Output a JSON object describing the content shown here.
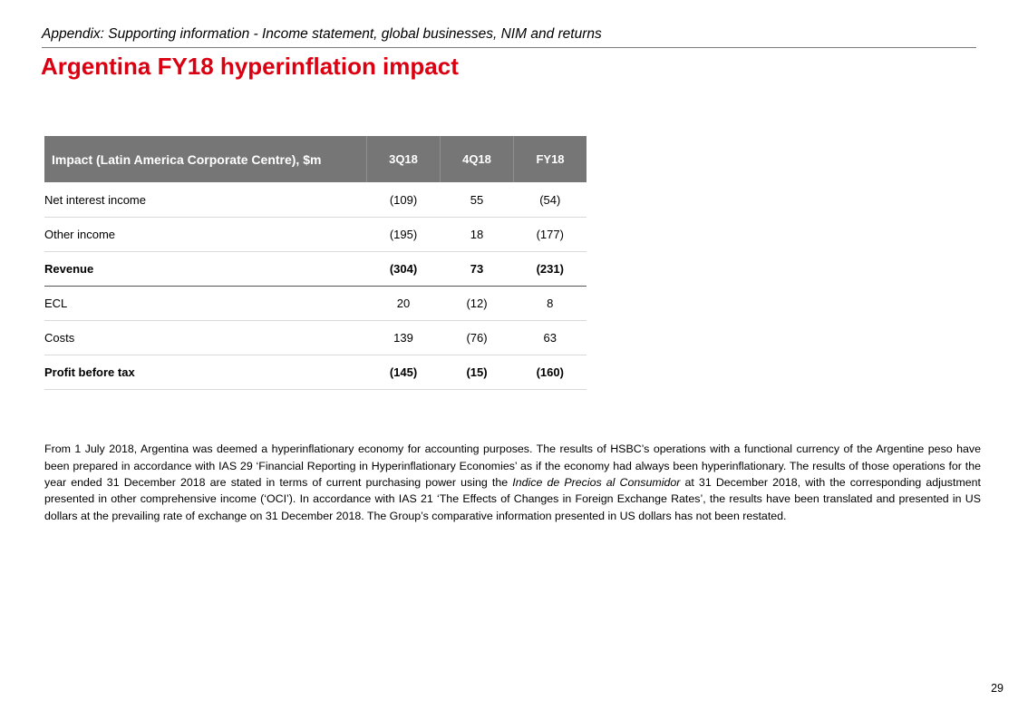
{
  "header": {
    "subtitle": "Appendix: Supporting information - Income statement, global businesses, NIM and returns",
    "title": "Argentina FY18 hyperinflation impact"
  },
  "table": {
    "columns": [
      "Impact (Latin America Corporate Centre), $m",
      "3Q18",
      "4Q18",
      "FY18"
    ],
    "rows": [
      {
        "label": "Net interest income",
        "values": [
          "(109)",
          "55",
          "(54)"
        ],
        "bold": false
      },
      {
        "label": "Other income",
        "values": [
          "(195)",
          "18",
          "(177)"
        ],
        "bold": false
      },
      {
        "label": "Revenue",
        "values": [
          "(304)",
          "73",
          "(231)"
        ],
        "bold": true
      },
      {
        "label": "ECL",
        "values": [
          "20",
          "(12)",
          "8"
        ],
        "bold": false
      },
      {
        "label": "Costs",
        "values": [
          "139",
          "(76)",
          "63"
        ],
        "bold": false
      },
      {
        "label": "Profit before tax",
        "values": [
          "(145)",
          "(15)",
          "(160)"
        ],
        "bold": true
      }
    ]
  },
  "note": {
    "part1": "From 1 July 2018, Argentina was deemed a hyperinflationary economy for accounting purposes. The results of HSBC’s operations with a functional currency of the Argentine peso have been prepared in accordance with IAS 29 ‘Financial Reporting in Hyperinflationary Economies’ as if the economy had always been hyperinflationary. The results of those operations for the year ended 31 December 2018 are stated in terms of current purchasing power using the ",
    "italic": "Indice de Precios al Consumidor",
    "part2": " at 31 December 2018, with the corresponding adjustment presented in other comprehensive income (‘OCI’). In accordance with IAS 21 ‘The Effects of Changes in Foreign Exchange Rates’, the results have been translated and presented in US dollars at the prevailing rate of exchange on 31 December 2018. The Group’s comparative information presented in US dollars has not been restated."
  },
  "footer": {
    "page_number": "29"
  },
  "colors": {
    "title_red": "#db0011",
    "header_grey": "#767676"
  }
}
